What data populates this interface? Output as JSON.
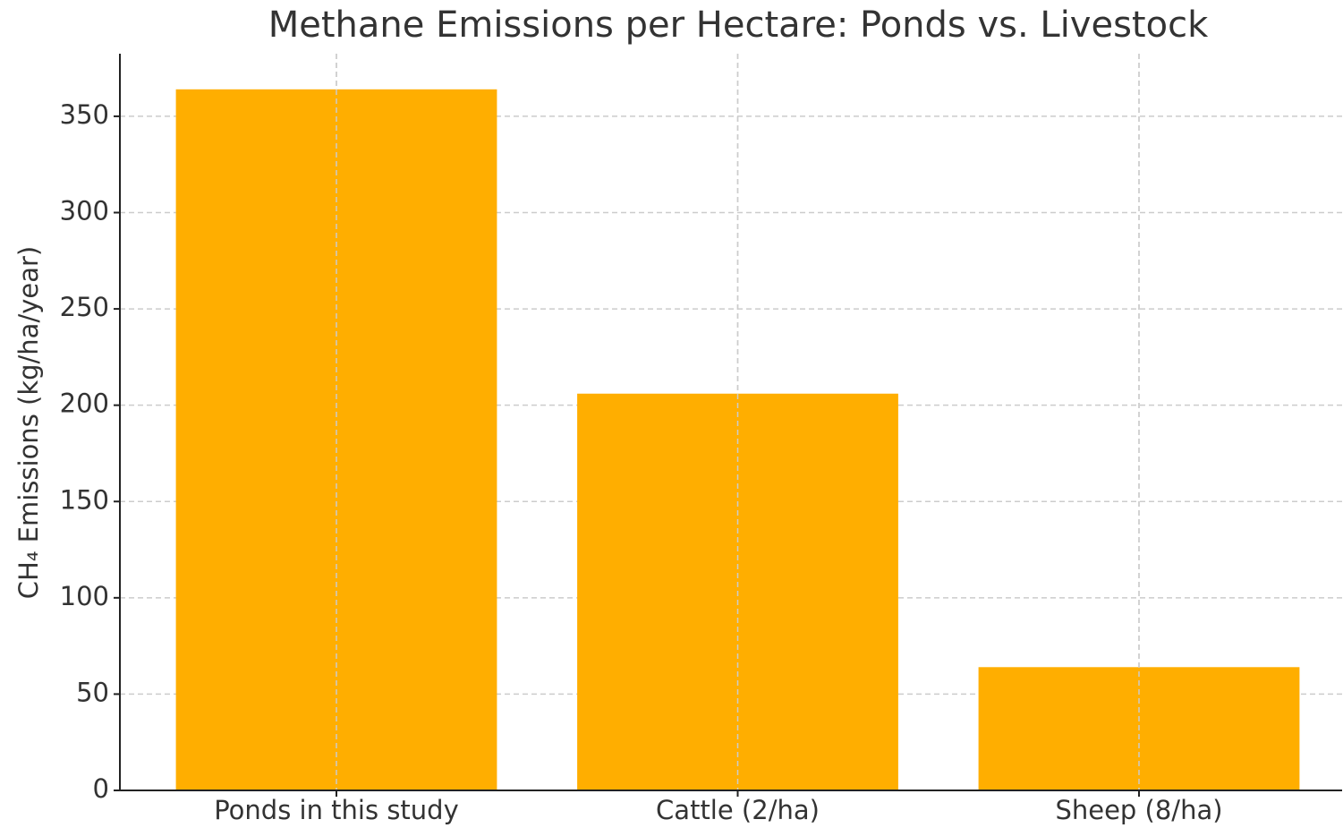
{
  "chart_data": {
    "type": "bar",
    "title": "Methane Emissions per Hectare: Ponds vs. Livestock",
    "y_label": "CH₄ Emissions (kg/ha/year)",
    "categories": [
      "Ponds in this study",
      "Cattle (2/ha)",
      "Sheep (8/ha)"
    ],
    "values": [
      364,
      206,
      64
    ],
    "color": "#ffae00",
    "ylim": [
      0,
      382.5
    ],
    "yticks": [
      0,
      50,
      100,
      150,
      200,
      250,
      300,
      350
    ],
    "grid": true
  }
}
